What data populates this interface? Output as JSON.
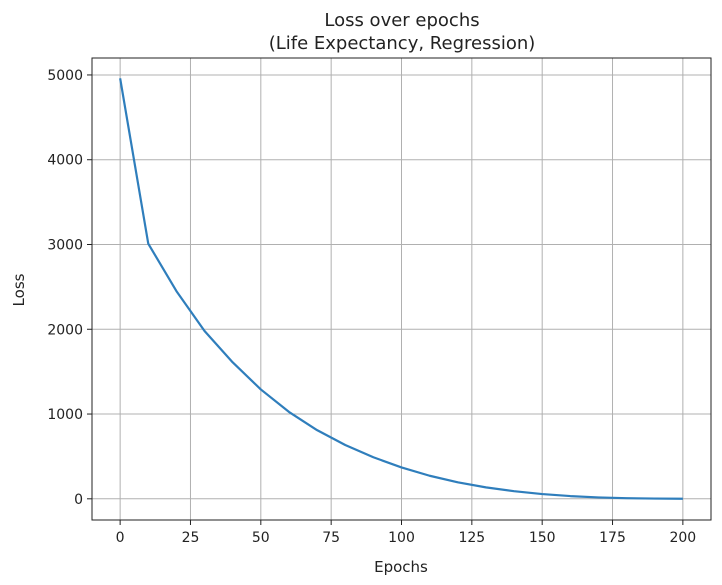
{
  "chart_data": {
    "type": "line",
    "title": "Loss over epochs",
    "subtitle": "(Life Expectancy, Regression)",
    "xlabel": "Epochs",
    "ylabel": "Loss",
    "xlim": [
      -10,
      210
    ],
    "ylim": [
      -250,
      5200
    ],
    "xticks": [
      0,
      25,
      50,
      75,
      100,
      125,
      150,
      175,
      200
    ],
    "yticks": [
      0,
      1000,
      2000,
      3000,
      4000,
      5000
    ],
    "grid": true,
    "line_color": "#2f7ebc",
    "x": [
      0,
      10,
      20,
      30,
      40,
      50,
      60,
      70,
      80,
      90,
      100,
      110,
      120,
      130,
      140,
      150,
      160,
      170,
      180,
      190,
      200
    ],
    "y": [
      4960,
      3010,
      2450,
      1980,
      1610,
      1290,
      1025,
      810,
      635,
      490,
      370,
      272,
      195,
      135,
      90,
      56,
      32,
      16,
      7,
      3,
      1
    ]
  }
}
